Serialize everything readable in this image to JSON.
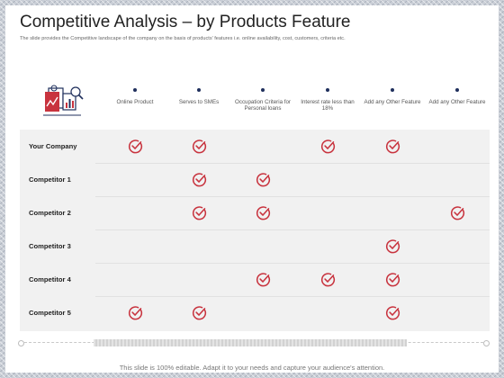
{
  "slide": {
    "title": "Competitive Analysis – by Products Feature",
    "subtitle": "The slide provides the Competitive landscape of the company on the basis of products' features i.e. online availability, cost, customers, criteria etc.",
    "footer": "This slide is 100% editable. Adapt it to your needs and capture your audience's attention."
  },
  "table": {
    "logo_icon": "analytics-documents-icon",
    "columns": [
      {
        "label": "Online Product"
      },
      {
        "label": "Serves to SMEs"
      },
      {
        "label": "Occupation Criteria for Personal loans"
      },
      {
        "label": "Interest rate less than 18%"
      },
      {
        "label": "Add any Other Feature"
      },
      {
        "label": "Add any Other Feature"
      }
    ],
    "rows": [
      {
        "name": "Your Company",
        "checks": [
          true,
          true,
          false,
          true,
          true,
          false
        ]
      },
      {
        "name": "Competitor 1",
        "checks": [
          false,
          true,
          true,
          false,
          false,
          false
        ]
      },
      {
        "name": "Competitor 2",
        "checks": [
          false,
          true,
          true,
          false,
          false,
          true
        ]
      },
      {
        "name": "Competitor 3",
        "checks": [
          false,
          false,
          false,
          false,
          true,
          false
        ]
      },
      {
        "name": "Competitor 4",
        "checks": [
          false,
          false,
          true,
          true,
          true,
          false
        ]
      },
      {
        "name": "Competitor 5",
        "checks": [
          true,
          true,
          false,
          false,
          true,
          false
        ]
      }
    ],
    "check_icon": "check-circle-icon"
  },
  "colors": {
    "check": "#c8333e",
    "dot": "#1f2f5c",
    "row_bg": "#f1f1f1"
  }
}
